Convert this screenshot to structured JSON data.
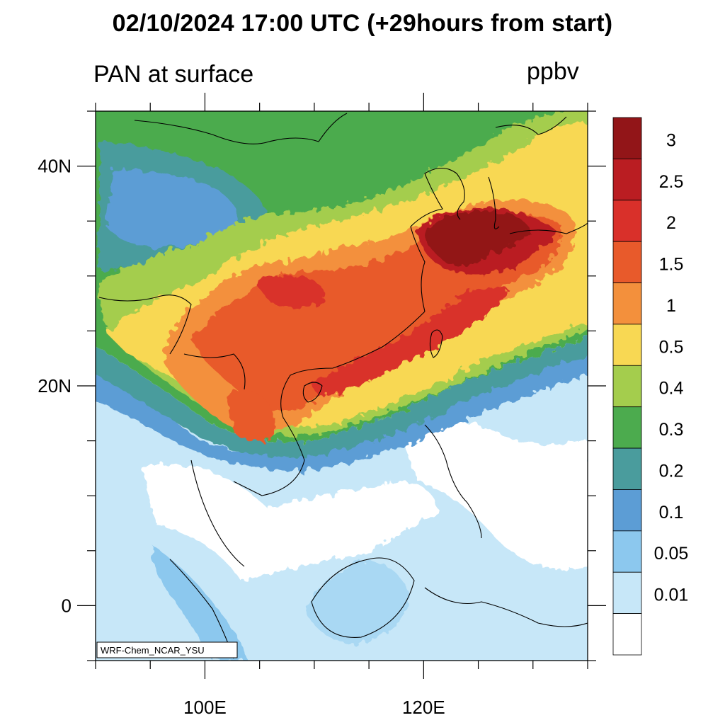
{
  "header": {
    "title": "02/10/2024 17:00 UTC (+29hours from start)",
    "subtitle": "PAN at surface",
    "units": "ppbv"
  },
  "map": {
    "lon_range": [
      90,
      135
    ],
    "lat_range": [
      -5,
      45
    ],
    "lat_labels": [
      {
        "lat": 40,
        "text": "40N"
      },
      {
        "lat": 20,
        "text": "20N"
      },
      {
        "lat": 0,
        "text": "0"
      }
    ],
    "lon_labels": [
      {
        "lon": 100,
        "text": "100E"
      },
      {
        "lon": 120,
        "text": "120E"
      }
    ],
    "model_tag": "WRF-Chem_NCAR_YSU"
  },
  "colorbar": {
    "levels": [
      "3",
      "2.5",
      "2",
      "1.5",
      "1",
      "0.5",
      "0.4",
      "0.3",
      "0.2",
      "0.1",
      "0.05",
      "0.01"
    ],
    "colors": [
      "#921518",
      "#ba1d22",
      "#d9302a",
      "#e85a2b",
      "#f3903c",
      "#f8d853",
      "#a4cd4d",
      "#4cab4e",
      "#4a9c9d",
      "#5c9dd5",
      "#8cc8ee",
      "#c7e7f8",
      "#ffffff"
    ]
  }
}
